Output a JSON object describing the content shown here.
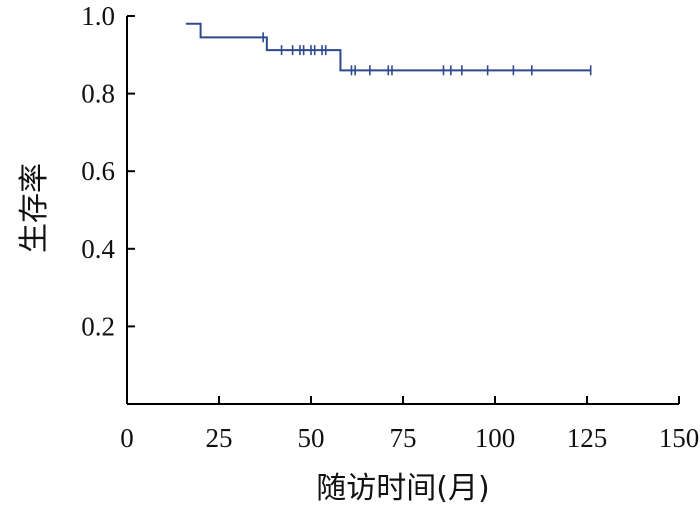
{
  "chart_data": {
    "type": "line",
    "title": "",
    "xlabel": "随访时间(月)",
    "ylabel": "生存率",
    "xlim": [
      0,
      150
    ],
    "ylim": [
      0,
      1.0
    ],
    "xticks": [
      0,
      25,
      50,
      75,
      100,
      125,
      150
    ],
    "xtick_labels": [
      "0",
      "25",
      "50",
      "75",
      "100",
      "125",
      "150"
    ],
    "yticks": [
      0.2,
      0.4,
      0.6,
      0.8,
      1.0
    ],
    "ytick_labels": [
      "0.2",
      "0.4",
      "0.6",
      "0.8",
      "1.0"
    ],
    "grid": false,
    "legend": "none",
    "line_color": "#2e4a8c",
    "series": [
      {
        "step": "post",
        "x": [
          16,
          20,
          38,
          58,
          126
        ],
        "y": [
          0.98,
          0.945,
          0.912,
          0.86,
          0.86
        ]
      }
    ],
    "censor_marks": [
      {
        "x": 37,
        "y": 0.945
      },
      {
        "x": 42,
        "y": 0.912
      },
      {
        "x": 45,
        "y": 0.912
      },
      {
        "x": 47,
        "y": 0.912
      },
      {
        "x": 48,
        "y": 0.912
      },
      {
        "x": 50,
        "y": 0.912
      },
      {
        "x": 51,
        "y": 0.912
      },
      {
        "x": 53,
        "y": 0.912
      },
      {
        "x": 54,
        "y": 0.912
      },
      {
        "x": 61,
        "y": 0.86
      },
      {
        "x": 62,
        "y": 0.86
      },
      {
        "x": 66,
        "y": 0.86
      },
      {
        "x": 71,
        "y": 0.86
      },
      {
        "x": 72,
        "y": 0.86
      },
      {
        "x": 86,
        "y": 0.86
      },
      {
        "x": 88,
        "y": 0.86
      },
      {
        "x": 91,
        "y": 0.86
      },
      {
        "x": 98,
        "y": 0.86
      },
      {
        "x": 105,
        "y": 0.86
      },
      {
        "x": 110,
        "y": 0.86
      },
      {
        "x": 126,
        "y": 0.86
      }
    ]
  }
}
